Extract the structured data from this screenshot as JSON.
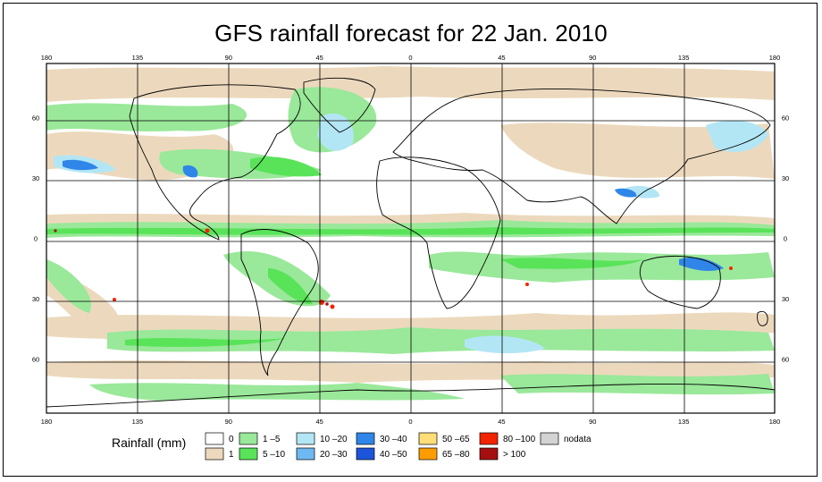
{
  "title": "GFS rainfall forecast for 22 Jan. 2010",
  "map": {
    "longitude_labels": [
      "180",
      "135",
      "90",
      "45",
      "0",
      "45",
      "90",
      "135",
      "180"
    ],
    "latitude_labels": [
      "60",
      "30",
      "0",
      "30",
      "60"
    ],
    "longitudes": [
      -180,
      -135,
      -90,
      -45,
      0,
      45,
      90,
      135,
      180
    ],
    "latitudes": [
      60,
      30,
      0,
      -30,
      -60
    ]
  },
  "legend": {
    "title": "Rainfall (mm)",
    "items": [
      {
        "label": "0",
        "color": "#ffffff"
      },
      {
        "label": "1",
        "color": "#ecd9bd"
      },
      {
        "label": "1 –5",
        "color": "#9ae89a"
      },
      {
        "label": "5 –10",
        "color": "#59e359"
      },
      {
        "label": "10 –20",
        "color": "#b3e6f5"
      },
      {
        "label": "20 –30",
        "color": "#6fb9f2"
      },
      {
        "label": "30 –40",
        "color": "#2f86e8"
      },
      {
        "label": "40 –50",
        "color": "#1c55dc"
      },
      {
        "label": "50 –65",
        "color": "#ffde78"
      },
      {
        "label": "65 –80",
        "color": "#ff9d00"
      },
      {
        "label": "80 –100",
        "color": "#f22400"
      },
      {
        "label": "> 100",
        "color": "#a50f0f"
      },
      {
        "label": "nodata",
        "color": "#d3d3d3"
      }
    ]
  },
  "colors": {
    "land_outline": "#000000",
    "grid": "#000000",
    "frame": "#000000"
  }
}
